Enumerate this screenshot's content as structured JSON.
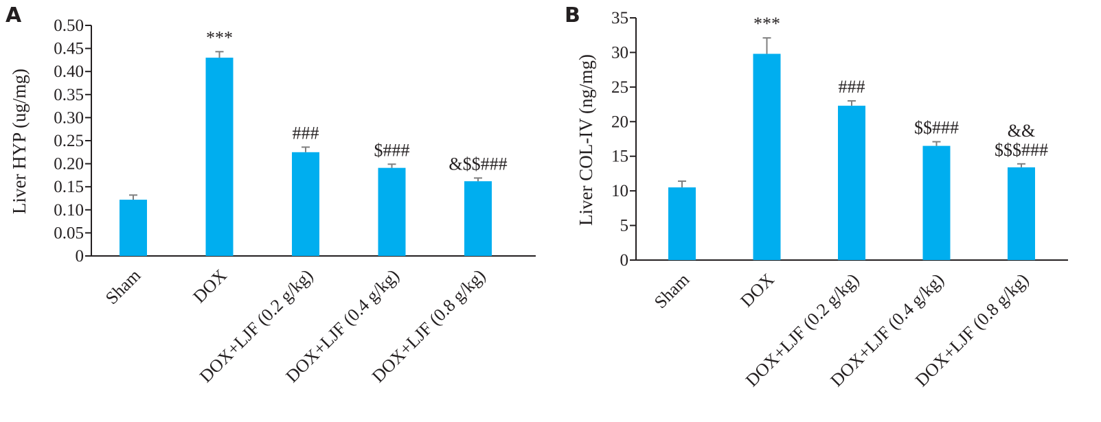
{
  "chart_data": [
    {
      "type": "bar",
      "panel": "A",
      "ylabel": "Liver HYP (ug/mg)",
      "xlabel": "",
      "ylim": [
        0,
        0.5
      ],
      "yticks": [
        "0",
        "0.05",
        "0.10",
        "0.15",
        "0.20",
        "0.25",
        "0.30",
        "0.35",
        "0.40",
        "0.45",
        "0.50"
      ],
      "categories": [
        "Sham",
        "DOX",
        "DOX+LJF (0.2 g/kg)",
        "DOX+LJF (0.4 g/kg)",
        "DOX+LJF (0.8 g/kg)"
      ],
      "values": [
        0.122,
        0.43,
        0.225,
        0.191,
        0.162
      ],
      "errors": [
        0.01,
        0.013,
        0.011,
        0.008,
        0.007
      ],
      "annotations": [
        [
          ""
        ],
        [
          "***"
        ],
        [
          "###"
        ],
        [
          "$###"
        ],
        [
          "&$$###"
        ]
      ],
      "bar_color": "#00aeef",
      "grid": false
    },
    {
      "type": "bar",
      "panel": "B",
      "ylabel": "Liver COL-IV (ng/mg)",
      "xlabel": "",
      "ylim": [
        0,
        35
      ],
      "yticks": [
        "0",
        "5",
        "10",
        "15",
        "20",
        "25",
        "30",
        "35"
      ],
      "categories": [
        "Sham",
        "DOX",
        "DOX+LJF (0.2 g/kg)",
        "DOX+LJF (0.4 g/kg)",
        "DOX+LJF (0.8 g/kg)"
      ],
      "values": [
        10.5,
        29.8,
        22.3,
        16.5,
        13.4
      ],
      "errors": [
        0.9,
        2.3,
        0.7,
        0.6,
        0.5
      ],
      "annotations": [
        [
          ""
        ],
        [
          "***"
        ],
        [
          "###"
        ],
        [
          "$$###"
        ],
        [
          "&&",
          "$$$###"
        ]
      ],
      "bar_color": "#00aeef",
      "grid": false
    }
  ]
}
